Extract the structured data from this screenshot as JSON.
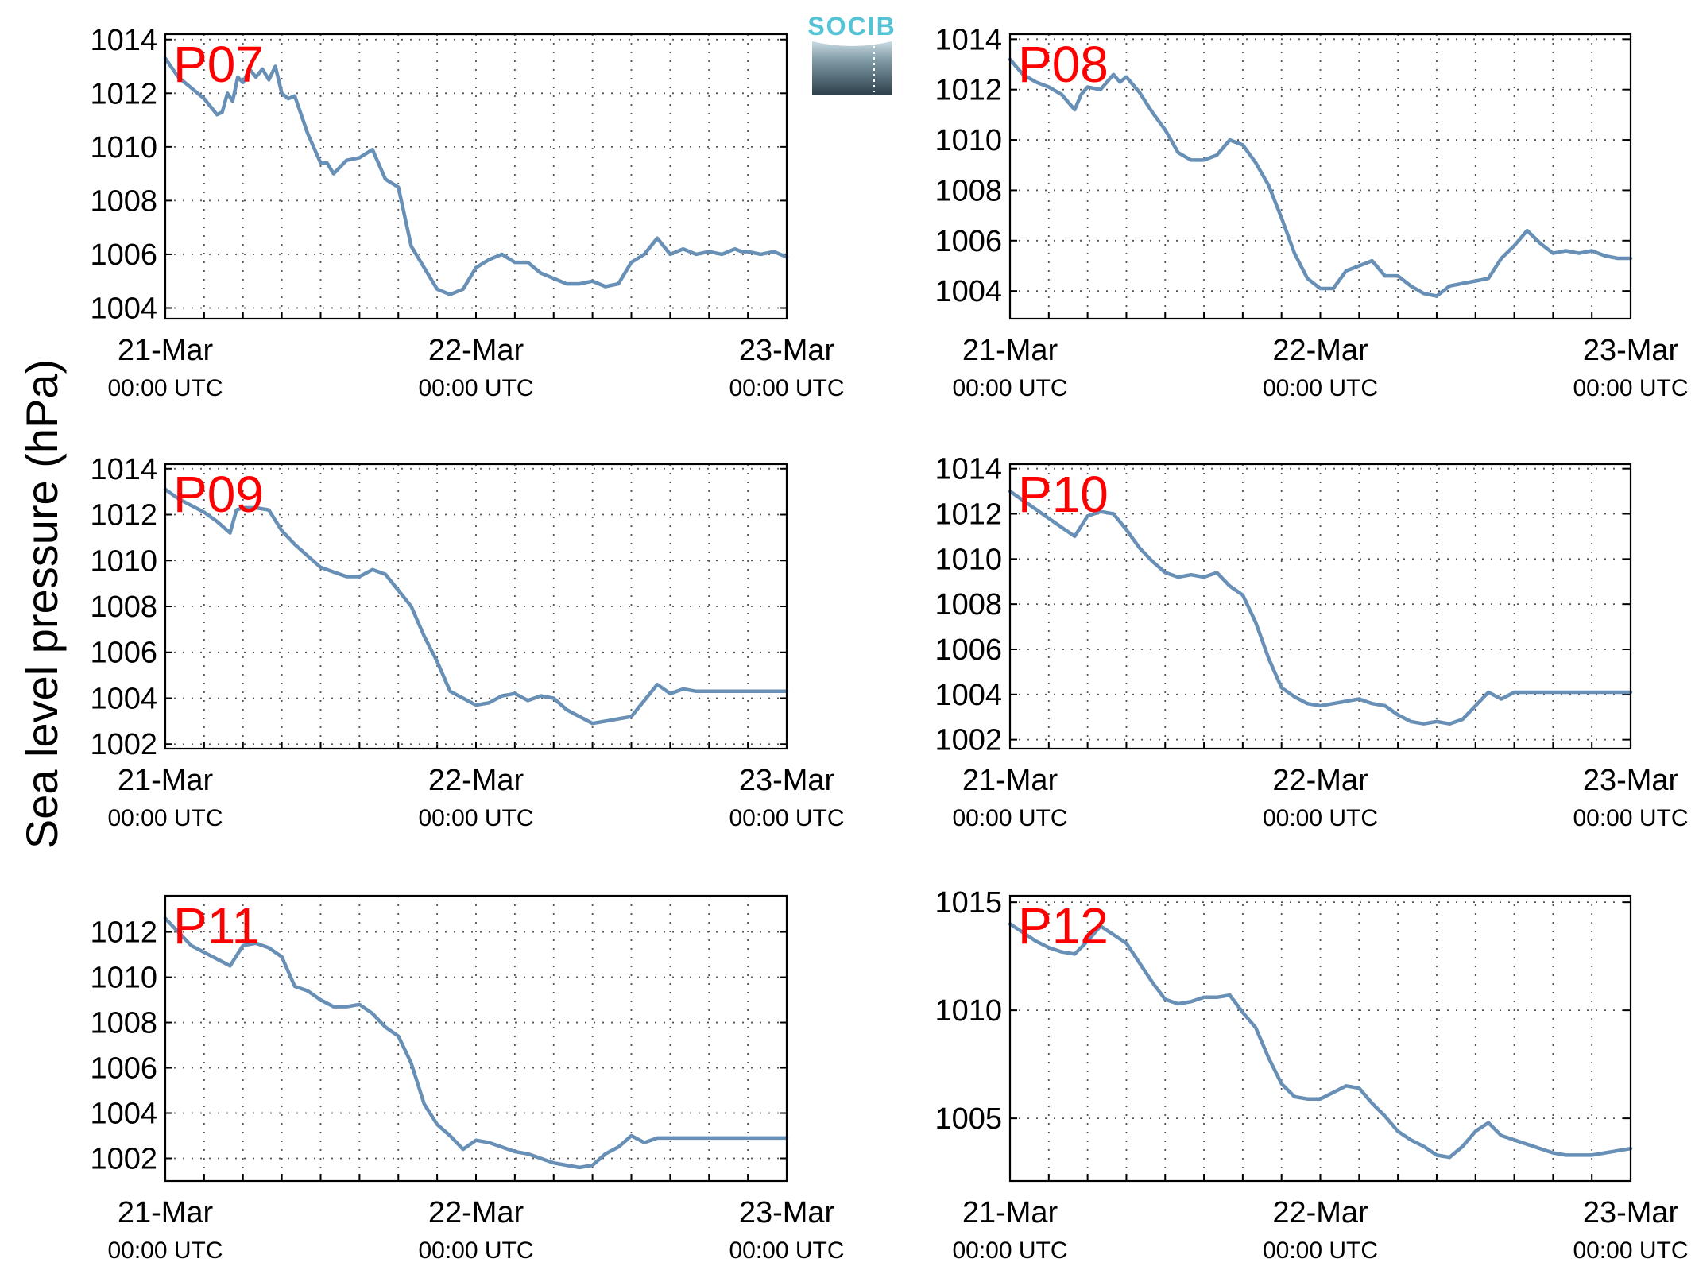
{
  "figure": {
    "ylabel": "Sea level pressure (hPa)",
    "logo": {
      "text": "SOCIB"
    }
  },
  "chart_data": [
    {
      "type": "line",
      "title": "P07",
      "ylim": [
        1003.6,
        1014.2
      ],
      "yticks": [
        1004,
        1006,
        1008,
        1010,
        1012,
        1014
      ],
      "xlim": [
        0,
        48
      ],
      "xticks": [
        {
          "x": 0,
          "date": "21-Mar",
          "time": "00:00 UTC"
        },
        {
          "x": 24,
          "date": "22-Mar",
          "time": "00:00 UTC"
        },
        {
          "x": 48,
          "date": "23-Mar",
          "time": "00:00 UTC"
        }
      ],
      "grid": true,
      "series": [
        {
          "color": "#6890b6",
          "x": [
            0,
            1,
            2,
            3,
            3.5,
            4,
            4.4,
            4.8,
            5.2,
            5.6,
            6,
            6.5,
            7,
            7.5,
            8,
            8.5,
            9,
            9.5,
            10,
            11,
            12,
            12.5,
            13,
            14,
            15,
            16,
            17,
            18,
            19,
            20,
            21,
            22,
            23,
            24,
            25,
            26,
            27,
            28,
            29,
            30,
            31,
            32,
            33,
            34,
            35,
            36,
            37,
            38,
            39,
            40,
            41,
            42,
            43,
            44,
            44.5,
            45,
            46,
            47,
            48
          ],
          "y": [
            1013.3,
            1012.6,
            1012.2,
            1011.8,
            1011.5,
            1011.2,
            1011.3,
            1012.0,
            1011.7,
            1012.6,
            1012.4,
            1012.9,
            1012.6,
            1012.9,
            1012.5,
            1013.0,
            1012.0,
            1011.8,
            1011.9,
            1010.5,
            1009.4,
            1009.4,
            1009.0,
            1009.5,
            1009.6,
            1009.9,
            1008.8,
            1008.5,
            1006.3,
            1005.5,
            1004.7,
            1004.5,
            1004.7,
            1005.5,
            1005.8,
            1006.0,
            1005.7,
            1005.7,
            1005.3,
            1005.1,
            1004.9,
            1004.9,
            1005.0,
            1004.8,
            1004.9,
            1005.7,
            1006.0,
            1006.6,
            1006.0,
            1006.2,
            1006.0,
            1006.1,
            1006.0,
            1006.2,
            1006.1,
            1006.1,
            1006.0,
            1006.1,
            1005.9
          ]
        }
      ]
    },
    {
      "type": "line",
      "title": "P08",
      "ylim": [
        1002.9,
        1014.2
      ],
      "yticks": [
        1004,
        1006,
        1008,
        1010,
        1012,
        1014
      ],
      "xlim": [
        0,
        48
      ],
      "xticks": [
        {
          "x": 0,
          "date": "21-Mar",
          "time": "00:00 UTC"
        },
        {
          "x": 24,
          "date": "22-Mar",
          "time": "00:00 UTC"
        },
        {
          "x": 48,
          "date": "23-Mar",
          "time": "00:00 UTC"
        }
      ],
      "grid": true,
      "series": [
        {
          "color": "#6890b6",
          "x": [
            0,
            1,
            2,
            3,
            4,
            5,
            5.5,
            6,
            7,
            8,
            8.5,
            9,
            10,
            11,
            12,
            13,
            14,
            15,
            16,
            17,
            18,
            19,
            20,
            21,
            22,
            23,
            24,
            25,
            26,
            27,
            28,
            29,
            30,
            31,
            32,
            33,
            34,
            35,
            36,
            37,
            38,
            39,
            40,
            41,
            42,
            43,
            44,
            45,
            46,
            47,
            48
          ],
          "y": [
            1013.2,
            1012.6,
            1012.3,
            1012.1,
            1011.8,
            1011.2,
            1011.8,
            1012.1,
            1012.0,
            1012.6,
            1012.3,
            1012.5,
            1011.9,
            1011.1,
            1010.4,
            1009.5,
            1009.2,
            1009.2,
            1009.4,
            1010.0,
            1009.8,
            1009.1,
            1008.2,
            1006.9,
            1005.5,
            1004.5,
            1004.1,
            1004.1,
            1004.8,
            1005.0,
            1005.2,
            1004.6,
            1004.6,
            1004.2,
            1003.9,
            1003.8,
            1004.2,
            1004.3,
            1004.4,
            1004.5,
            1005.3,
            1005.8,
            1006.4,
            1005.9,
            1005.5,
            1005.6,
            1005.5,
            1005.6,
            1005.4,
            1005.3,
            1005.3
          ]
        }
      ]
    },
    {
      "type": "line",
      "title": "P09",
      "ylim": [
        1001.8,
        1014.2
      ],
      "yticks": [
        1002,
        1004,
        1006,
        1008,
        1010,
        1012,
        1014
      ],
      "xlim": [
        0,
        48
      ],
      "xticks": [
        {
          "x": 0,
          "date": "21-Mar",
          "time": "00:00 UTC"
        },
        {
          "x": 24,
          "date": "22-Mar",
          "time": "00:00 UTC"
        },
        {
          "x": 48,
          "date": "23-Mar",
          "time": "00:00 UTC"
        }
      ],
      "grid": true,
      "series": [
        {
          "color": "#6890b6",
          "x": [
            0,
            1,
            2,
            3,
            4,
            5,
            5.5,
            6,
            7,
            8,
            9,
            10,
            11,
            12,
            13,
            14,
            15,
            16,
            17,
            18,
            19,
            20,
            21,
            22,
            23,
            24,
            25,
            26,
            27,
            28,
            29,
            30,
            31,
            32,
            33,
            34,
            35,
            36,
            37,
            38,
            39,
            40,
            41,
            42,
            43,
            44,
            45,
            46,
            47,
            48
          ],
          "y": [
            1013.1,
            1012.7,
            1012.4,
            1012.1,
            1011.7,
            1011.2,
            1012.2,
            1012.3,
            1012.3,
            1012.2,
            1011.3,
            1010.7,
            1010.2,
            1009.7,
            1009.5,
            1009.3,
            1009.3,
            1009.6,
            1009.4,
            1008.7,
            1008.0,
            1006.7,
            1005.6,
            1004.3,
            1004.0,
            1003.7,
            1003.8,
            1004.1,
            1004.2,
            1003.9,
            1004.1,
            1004.0,
            1003.5,
            1003.2,
            1002.9,
            1003.0,
            1003.1,
            1003.2,
            1003.9,
            1004.6,
            1004.2,
            1004.4,
            1004.3,
            1004.3,
            1004.3,
            1004.3,
            1004.3,
            1004.3,
            1004.3,
            1004.3
          ]
        }
      ]
    },
    {
      "type": "line",
      "title": "P10",
      "ylim": [
        1001.6,
        1014.2
      ],
      "yticks": [
        1002,
        1004,
        1006,
        1008,
        1010,
        1012,
        1014
      ],
      "xlim": [
        0,
        48
      ],
      "xticks": [
        {
          "x": 0,
          "date": "21-Mar",
          "time": "00:00 UTC"
        },
        {
          "x": 24,
          "date": "22-Mar",
          "time": "00:00 UTC"
        },
        {
          "x": 48,
          "date": "23-Mar",
          "time": "00:00 UTC"
        }
      ],
      "grid": true,
      "series": [
        {
          "color": "#6890b6",
          "x": [
            0,
            1,
            2,
            3,
            4,
            5,
            6,
            7,
            8,
            9,
            10,
            11,
            12,
            13,
            14,
            15,
            16,
            17,
            18,
            19,
            20,
            21,
            22,
            23,
            24,
            25,
            26,
            27,
            28,
            29,
            30,
            31,
            32,
            33,
            34,
            35,
            36,
            37,
            38,
            39,
            40,
            41,
            42,
            43,
            44,
            45,
            46,
            47,
            48
          ],
          "y": [
            1013.0,
            1012.6,
            1012.2,
            1011.8,
            1011.4,
            1011.0,
            1011.9,
            1012.1,
            1012.0,
            1011.3,
            1010.5,
            1009.9,
            1009.4,
            1009.2,
            1009.3,
            1009.2,
            1009.4,
            1008.8,
            1008.4,
            1007.2,
            1005.6,
            1004.3,
            1003.9,
            1003.6,
            1003.5,
            1003.6,
            1003.7,
            1003.8,
            1003.6,
            1003.5,
            1003.1,
            1002.8,
            1002.7,
            1002.8,
            1002.7,
            1002.9,
            1003.5,
            1004.1,
            1003.8,
            1004.1,
            1004.1,
            1004.1,
            1004.1,
            1004.1,
            1004.1,
            1004.1,
            1004.1,
            1004.1,
            1004.1
          ]
        }
      ]
    },
    {
      "type": "line",
      "title": "P11",
      "ylim": [
        1001.0,
        1013.6
      ],
      "yticks": [
        1002,
        1004,
        1006,
        1008,
        1010,
        1012
      ],
      "xlim": [
        0,
        48
      ],
      "xticks": [
        {
          "x": 0,
          "date": "21-Mar",
          "time": "00:00 UTC"
        },
        {
          "x": 24,
          "date": "22-Mar",
          "time": "00:00 UTC"
        },
        {
          "x": 48,
          "date": "23-Mar",
          "time": "00:00 UTC"
        }
      ],
      "grid": true,
      "series": [
        {
          "color": "#6890b6",
          "x": [
            0,
            1,
            2,
            3,
            4,
            5,
            6,
            7,
            8,
            9,
            10,
            11,
            12,
            13,
            14,
            15,
            16,
            17,
            18,
            19,
            20,
            21,
            22,
            23,
            24,
            25,
            26,
            27,
            28,
            29,
            30,
            31,
            32,
            33,
            34,
            35,
            36,
            37,
            38,
            39,
            40,
            41,
            42,
            43,
            44,
            45,
            46,
            47,
            48
          ],
          "y": [
            1012.6,
            1012.0,
            1011.4,
            1011.1,
            1010.8,
            1010.5,
            1011.4,
            1011.5,
            1011.3,
            1010.9,
            1009.6,
            1009.4,
            1009.0,
            1008.7,
            1008.7,
            1008.8,
            1008.4,
            1007.8,
            1007.4,
            1006.2,
            1004.4,
            1003.5,
            1003.0,
            1002.4,
            1002.8,
            1002.7,
            1002.5,
            1002.3,
            1002.2,
            1002.0,
            1001.8,
            1001.7,
            1001.6,
            1001.7,
            1002.2,
            1002.5,
            1003.0,
            1002.7,
            1002.9,
            1002.9,
            1002.9,
            1002.9,
            1002.9,
            1002.9,
            1002.9,
            1002.9,
            1002.9,
            1002.9,
            1002.9
          ]
        }
      ]
    },
    {
      "type": "line",
      "title": "P12",
      "ylim": [
        1002.1,
        1015.3
      ],
      "yticks": [
        1005,
        1010,
        1015
      ],
      "xlim": [
        0,
        48
      ],
      "xticks": [
        {
          "x": 0,
          "date": "21-Mar",
          "time": "00:00 UTC"
        },
        {
          "x": 24,
          "date": "22-Mar",
          "time": "00:00 UTC"
        },
        {
          "x": 48,
          "date": "23-Mar",
          "time": "00:00 UTC"
        }
      ],
      "grid": true,
      "series": [
        {
          "color": "#6890b6",
          "x": [
            0,
            1,
            2,
            3,
            4,
            5,
            6,
            7,
            8,
            9,
            10,
            11,
            12,
            13,
            14,
            15,
            16,
            17,
            18,
            19,
            20,
            21,
            22,
            23,
            24,
            25,
            26,
            27,
            28,
            29,
            30,
            31,
            32,
            33,
            34,
            35,
            36,
            37,
            38,
            39,
            40,
            41,
            42,
            43,
            44,
            45,
            46,
            47,
            48
          ],
          "y": [
            1014.0,
            1013.6,
            1013.2,
            1012.9,
            1012.7,
            1012.6,
            1013.2,
            1013.9,
            1013.5,
            1013.1,
            1012.2,
            1011.3,
            1010.5,
            1010.3,
            1010.4,
            1010.6,
            1010.6,
            1010.7,
            1009.9,
            1009.2,
            1007.8,
            1006.6,
            1006.0,
            1005.9,
            1005.9,
            1006.2,
            1006.5,
            1006.4,
            1005.7,
            1005.1,
            1004.4,
            1004.0,
            1003.7,
            1003.3,
            1003.2,
            1003.7,
            1004.4,
            1004.8,
            1004.2,
            1004.0,
            1003.8,
            1003.6,
            1003.4,
            1003.3,
            1003.3,
            1003.3,
            1003.4,
            1003.5,
            1003.6
          ]
        }
      ]
    }
  ]
}
